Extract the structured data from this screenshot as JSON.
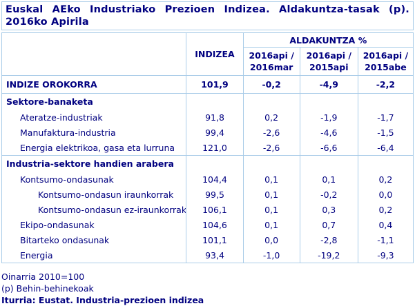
{
  "colors": {
    "text_navy": "#000080",
    "table_border_blue": "#a9cce8",
    "background": "#ffffff"
  },
  "title": "Euskal AEko Industriako Prezioen Indizea. Aldakuntza-tasak (p). 2016ko Apirila",
  "table": {
    "header": {
      "index_col": "INDIZEA",
      "change_group": "ALDAKUNTZA %",
      "change_cols": [
        {
          "line1": "2016api /",
          "line2": "2016mar"
        },
        {
          "line1": "2016api /",
          "line2": "2015api"
        },
        {
          "line1": "2016api /",
          "line2": "2015abe"
        }
      ]
    },
    "rows": [
      {
        "label": "INDIZE OROKORRA",
        "type": "total",
        "values": [
          "101,9",
          "-0,2",
          "-4,9",
          "-2,2"
        ]
      },
      {
        "label": "Sektore-banaketa",
        "type": "section",
        "values": [
          "",
          "",
          "",
          ""
        ]
      },
      {
        "label": "Ateratze-industriak",
        "type": "item",
        "values": [
          "91,8",
          "0,2",
          "-1,9",
          "-1,7"
        ]
      },
      {
        "label": "Manufaktura-industria",
        "type": "item",
        "values": [
          "99,4",
          "-2,6",
          "-4,6",
          "-1,5"
        ]
      },
      {
        "label": "Energia elektrikoa, gasa eta lurruna",
        "type": "item",
        "values": [
          "121,0",
          "-2,6",
          "-6,6",
          "-6,4"
        ]
      },
      {
        "label": "Industria-sektore handien arabera",
        "type": "section",
        "values": [
          "",
          "",
          "",
          ""
        ]
      },
      {
        "label": "Kontsumo-ondasunak",
        "type": "item",
        "values": [
          "104,4",
          "0,1",
          "0,1",
          "0,2"
        ]
      },
      {
        "label": "Kontsumo-ondasun iraunkorrak",
        "type": "subitem",
        "values": [
          "99,5",
          "0,1",
          "-0,2",
          "0,0"
        ]
      },
      {
        "label": "Kontsumo-ondasun ez-iraunkorrak",
        "type": "subitem",
        "values": [
          "106,1",
          "0,1",
          "0,3",
          "0,2"
        ]
      },
      {
        "label": "Ekipo-ondasunak",
        "type": "item",
        "values": [
          "104,6",
          "0,1",
          "0,7",
          "0,4"
        ]
      },
      {
        "label": "Bitarteko ondasunak",
        "type": "item",
        "values": [
          "101,1",
          "0,0",
          "-2,8",
          "-1,1"
        ]
      },
      {
        "label": "Energia",
        "type": "item",
        "values": [
          "93,4",
          "-1,0",
          "-19,2",
          "-9,3"
        ]
      }
    ]
  },
  "footer": {
    "base_note": "Oinarria 2010=100",
    "provisional_note": "(p) Behin-behinekoak",
    "source": "Iturria: Eustat. Industria-prezioen indizea"
  },
  "chart_data": {
    "type": "table",
    "title": "Euskal AEko Industriako Prezioen Indizea. Aldakuntza-tasak (p). 2016ko Apirila",
    "group_header": "ALDAKUNTZA %",
    "columns": [
      "",
      "INDIZEA",
      "2016api / 2016mar",
      "2016api / 2015api",
      "2016api / 2015abe"
    ],
    "rows": [
      {
        "label": "INDIZE OROKORRA",
        "level": 0,
        "index": 101.9,
        "changes": [
          -0.2,
          -4.9,
          -2.2
        ]
      },
      {
        "label": "Sektore-banaketa",
        "level": 0,
        "index": null,
        "changes": [
          null,
          null,
          null
        ]
      },
      {
        "label": "Ateratze-industriak",
        "level": 1,
        "index": 91.8,
        "changes": [
          0.2,
          -1.9,
          -1.7
        ]
      },
      {
        "label": "Manufaktura-industria",
        "level": 1,
        "index": 99.4,
        "changes": [
          -2.6,
          -4.6,
          -1.5
        ]
      },
      {
        "label": "Energia elektrikoa, gasa eta lurruna",
        "level": 1,
        "index": 121.0,
        "changes": [
          -2.6,
          -6.6,
          -6.4
        ]
      },
      {
        "label": "Industria-sektore handien arabera",
        "level": 0,
        "index": null,
        "changes": [
          null,
          null,
          null
        ]
      },
      {
        "label": "Kontsumo-ondasunak",
        "level": 1,
        "index": 104.4,
        "changes": [
          0.1,
          0.1,
          0.2
        ]
      },
      {
        "label": "Kontsumo-ondasun iraunkorrak",
        "level": 2,
        "index": 99.5,
        "changes": [
          0.1,
          -0.2,
          0.0
        ]
      },
      {
        "label": "Kontsumo-ondasun ez-iraunkorrak",
        "level": 2,
        "index": 106.1,
        "changes": [
          0.1,
          0.3,
          0.2
        ]
      },
      {
        "label": "Ekipo-ondasunak",
        "level": 1,
        "index": 104.6,
        "changes": [
          0.1,
          0.7,
          0.4
        ]
      },
      {
        "label": "Bitarteko ondasunak",
        "level": 1,
        "index": 101.1,
        "changes": [
          0.0,
          -2.8,
          -1.1
        ]
      },
      {
        "label": "Energia",
        "level": 1,
        "index": 93.4,
        "changes": [
          -1.0,
          -19.2,
          -9.3
        ]
      }
    ],
    "notes": [
      "Oinarria 2010=100",
      "(p) Behin-behinekoak"
    ],
    "source": "Iturria: Eustat. Industria-prezioen indizea"
  }
}
